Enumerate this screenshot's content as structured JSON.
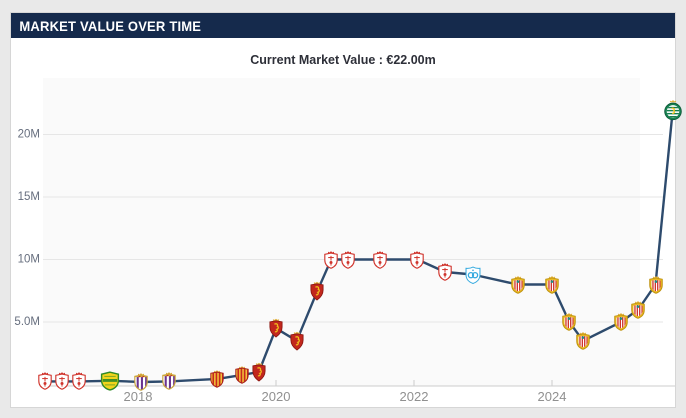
{
  "header": {
    "title": "MARKET VALUE OVER TIME"
  },
  "subtitle": {
    "text": "Current Market Value : €22.00m"
  },
  "colors": {
    "header_background": "#152a4c",
    "header_text": "#ffffff",
    "line": "#2e4b6d",
    "grid": "#e6e6e6",
    "pane": "#fafafa",
    "axis_line": "#cccccc",
    "y_label": "#666e7e",
    "x_label": "#909090"
  },
  "chart_data": {
    "type": "line",
    "title": "Market value over time",
    "series_name": "Market value (million €)",
    "current_value": "€22.00m",
    "x_axis": {
      "ticks": [
        2018,
        2020,
        2022,
        2024
      ],
      "range": [
        2016.3,
        2025.95
      ],
      "grid": false
    },
    "y_axis": {
      "ticks": [
        {
          "value": 5,
          "label": "5.0M"
        },
        {
          "value": 10,
          "label": "10M"
        },
        {
          "value": 15,
          "label": "15M"
        },
        {
          "value": 20,
          "label": "20M"
        }
      ],
      "range": [
        0,
        24.5
      ],
      "grid": true
    },
    "legend": "none",
    "points": [
      {
        "year": 2016.65,
        "value_m": 0.25,
        "club": "granada"
      },
      {
        "year": 2016.9,
        "value_m": 0.25,
        "club": "granada"
      },
      {
        "year": 2017.15,
        "value_m": 0.25,
        "club": "granada"
      },
      {
        "year": 2017.6,
        "value_m": 0.3,
        "club": "leones"
      },
      {
        "year": 2018.05,
        "value_m": 0.2,
        "club": "valladolid"
      },
      {
        "year": 2018.45,
        "value_m": 0.25,
        "club": "valladolid"
      },
      {
        "year": 2019.15,
        "value_m": 0.45,
        "club": "nastic"
      },
      {
        "year": 2019.5,
        "value_m": 0.75,
        "club": "nastic"
      },
      {
        "year": 2019.75,
        "value_m": 1.0,
        "club": "zaragoza"
      },
      {
        "year": 2020.0,
        "value_m": 4.5,
        "club": "zaragoza"
      },
      {
        "year": 2020.3,
        "value_m": 3.5,
        "club": "zaragoza"
      },
      {
        "year": 2020.6,
        "value_m": 7.5,
        "club": "zaragoza"
      },
      {
        "year": 2020.8,
        "value_m": 10.0,
        "club": "granada"
      },
      {
        "year": 2021.05,
        "value_m": 10.0,
        "club": "granada"
      },
      {
        "year": 2021.5,
        "value_m": 10.0,
        "club": "granada"
      },
      {
        "year": 2022.05,
        "value_m": 10.0,
        "club": "granada"
      },
      {
        "year": 2022.45,
        "value_m": 9.0,
        "club": "granada"
      },
      {
        "year": 2022.85,
        "value_m": 8.8,
        "club": "marseille"
      },
      {
        "year": 2023.5,
        "value_m": 8.0,
        "club": "almeria"
      },
      {
        "year": 2024.0,
        "value_m": 8.0,
        "club": "almeria"
      },
      {
        "year": 2024.25,
        "value_m": 5.0,
        "club": "almeria"
      },
      {
        "year": 2024.45,
        "value_m": 3.5,
        "club": "almeria"
      },
      {
        "year": 2025.0,
        "value_m": 5.0,
        "club": "almeria"
      },
      {
        "year": 2025.25,
        "value_m": 6.0,
        "club": "almeria"
      },
      {
        "year": 2025.5,
        "value_m": 8.0,
        "club": "almeria"
      },
      {
        "year": 2025.75,
        "value_m": 22.0,
        "club": "sporting"
      }
    ],
    "clubs": {
      "granada": {
        "name": "Granada CF",
        "icon": "granada-crest-icon"
      },
      "leones": {
        "name": "Leones FC",
        "icon": "leones-crest-icon"
      },
      "valladolid": {
        "name": "Real Valladolid",
        "icon": "valladolid-crest-icon"
      },
      "nastic": {
        "name": "Gimnàstic de Tarragona",
        "icon": "nastic-crest-icon"
      },
      "zaragoza": {
        "name": "Real Zaragoza",
        "icon": "zaragoza-crest-icon"
      },
      "marseille": {
        "name": "Olympique Marseille",
        "icon": "marseille-crest-icon"
      },
      "almeria": {
        "name": "UD Almería",
        "icon": "almeria-crest-icon"
      },
      "sporting": {
        "name": "Sporting CP",
        "icon": "sporting-cp-crest-icon"
      }
    }
  }
}
